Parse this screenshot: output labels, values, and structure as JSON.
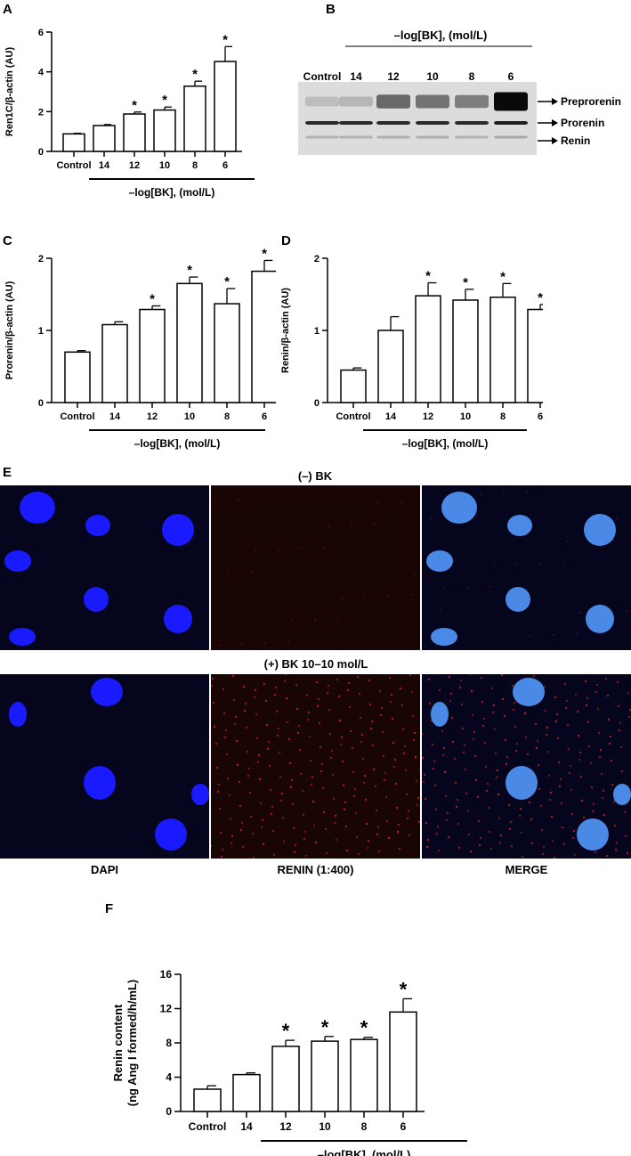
{
  "panels": {
    "A": "A",
    "B": "B",
    "C": "C",
    "D": "D",
    "E": "E",
    "F": "F"
  },
  "chart_data": [
    {
      "id": "A",
      "type": "bar",
      "categories": [
        "Control",
        "14",
        "12",
        "10",
        "8",
        "6"
      ],
      "values": [
        0.88,
        1.3,
        1.88,
        2.08,
        3.28,
        4.52
      ],
      "errors": [
        0.03,
        0.05,
        0.1,
        0.15,
        0.25,
        0.75
      ],
      "significant": [
        false,
        false,
        true,
        true,
        true,
        true
      ],
      "sig_mark": "*",
      "ylabel": "Ren1C/β-actin (AU)",
      "xlabel": "–log[BK], (mol/L)",
      "ylim": [
        0,
        6
      ],
      "yticks": [
        0,
        2,
        4,
        6
      ]
    },
    {
      "id": "C",
      "type": "bar",
      "categories": [
        "Control",
        "14",
        "12",
        "10",
        "8",
        "6"
      ],
      "values": [
        0.7,
        1.08,
        1.29,
        1.65,
        1.37,
        1.82
      ],
      "errors": [
        0.02,
        0.04,
        0.05,
        0.09,
        0.21,
        0.15
      ],
      "significant": [
        false,
        false,
        true,
        true,
        true,
        true
      ],
      "sig_mark": "*",
      "ylabel": "Prorenin/β-actin (AU)",
      "xlabel": "–log[BK], (mol/L)",
      "ylim": [
        0,
        2
      ],
      "yticks": [
        0,
        1,
        2
      ]
    },
    {
      "id": "D",
      "type": "bar",
      "categories": [
        "Control",
        "14",
        "12",
        "10",
        "8",
        "6"
      ],
      "values": [
        0.45,
        1.0,
        1.48,
        1.42,
        1.46,
        1.29
      ],
      "errors": [
        0.03,
        0.19,
        0.18,
        0.15,
        0.19,
        0.07
      ],
      "significant": [
        false,
        false,
        true,
        true,
        true,
        true
      ],
      "sig_mark": "*",
      "ylabel": "Renin/β-actin (AU)",
      "xlabel": "–log[BK], (mol/L)",
      "ylim": [
        0,
        2
      ],
      "yticks": [
        0,
        1,
        2
      ]
    },
    {
      "id": "F",
      "type": "bar",
      "categories": [
        "Control",
        "14",
        "12",
        "10",
        "8",
        "6"
      ],
      "values": [
        2.6,
        4.3,
        7.6,
        8.2,
        8.4,
        11.6
      ],
      "errors": [
        0.4,
        0.2,
        0.7,
        0.55,
        0.25,
        1.55
      ],
      "significant": [
        false,
        false,
        true,
        true,
        true,
        true
      ],
      "sig_mark": "*",
      "ylabel": "Renin content",
      "ylabel2": "(ng Ang I formed/h/mL)",
      "xlabel": "–log[BK], (mol/L)",
      "ylim": [
        0,
        16
      ],
      "yticks": [
        0,
        4,
        8,
        12,
        16
      ]
    }
  ],
  "blot": {
    "header": "–log[BK], (mol/L)",
    "lanes": [
      "Control",
      "14",
      "12",
      "10",
      "8",
      "6"
    ],
    "bands": [
      {
        "label": "Preprorenin",
        "intensity": [
          0.15,
          0.18,
          0.55,
          0.5,
          0.45,
          1.0
        ]
      },
      {
        "label": "Prorenin",
        "intensity": [
          0.85,
          0.85,
          0.85,
          0.85,
          0.85,
          0.9
        ]
      },
      {
        "label": "Renin",
        "intensity": [
          0.2,
          0.2,
          0.22,
          0.22,
          0.2,
          0.25
        ]
      }
    ]
  },
  "microscopy": {
    "conditions": [
      "(–) BK",
      "(+) BK 10–10 mol/L"
    ],
    "columns": [
      "DAPI",
      "RENIN (1:400)",
      "MERGE"
    ]
  },
  "colors": {
    "dapi_blue": "#1a1aff",
    "renin_red": "#c81e1e",
    "background": "#05051e"
  }
}
